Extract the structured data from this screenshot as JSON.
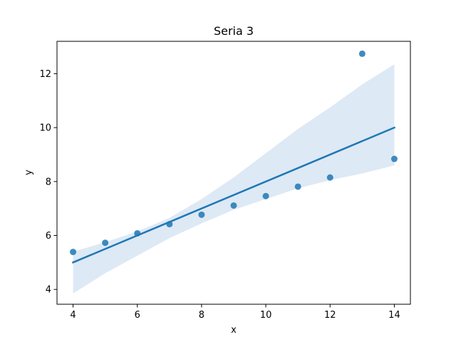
{
  "chart_data": {
    "type": "scatter",
    "title": "Seria 3",
    "xlabel": "x",
    "ylabel": "y",
    "xlim": [
      3.5,
      14.5
    ],
    "ylim": [
      3.45,
      13.2
    ],
    "xticks": [
      4,
      6,
      8,
      10,
      12,
      14
    ],
    "yticks": [
      4,
      6,
      8,
      10,
      12
    ],
    "grid": false,
    "colors": {
      "points": "#1f77b4",
      "line": "#1f77b4",
      "band": "#c6dbef"
    },
    "points": {
      "x": [
        4,
        5,
        6,
        7,
        8,
        9,
        10,
        11,
        12,
        13,
        14
      ],
      "y": [
        5.39,
        5.73,
        6.08,
        6.42,
        6.77,
        7.11,
        7.46,
        7.81,
        8.15,
        12.74,
        8.84
      ]
    },
    "regression": {
      "x": [
        4,
        14
      ],
      "y": [
        5.0,
        10.0
      ]
    },
    "confidence_band": {
      "x": [
        4,
        5,
        6,
        7,
        8,
        9,
        10,
        11,
        12,
        13,
        14
      ],
      "lower": [
        3.85,
        4.6,
        5.25,
        5.9,
        6.45,
        6.95,
        7.35,
        7.75,
        8.05,
        8.3,
        8.6
      ],
      "upper": [
        5.4,
        5.75,
        6.15,
        6.65,
        7.35,
        8.15,
        9.05,
        9.95,
        10.75,
        11.6,
        12.35
      ]
    }
  }
}
